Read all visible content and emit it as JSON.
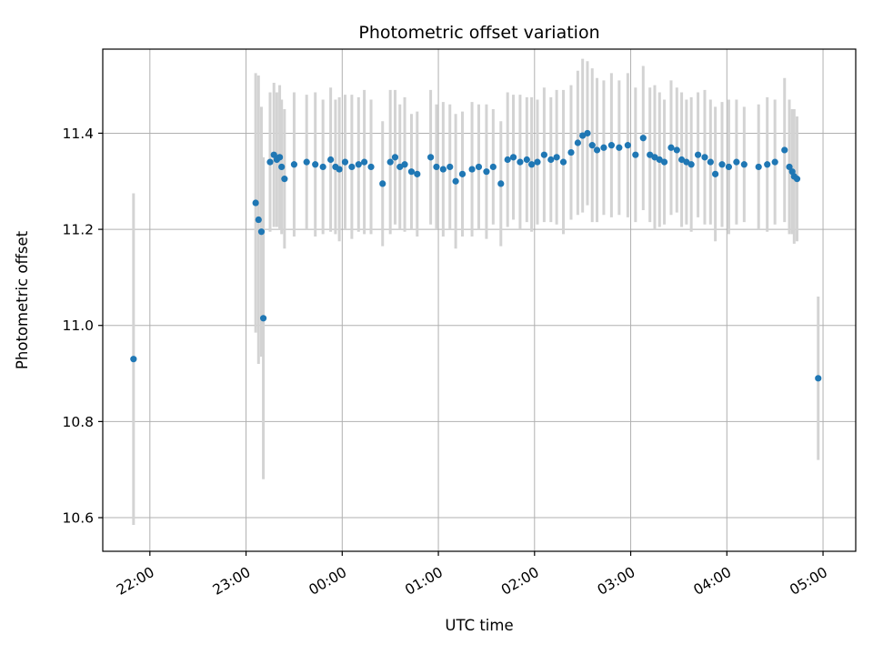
{
  "chart_data": {
    "type": "scatter",
    "title": "Photometric offset variation",
    "xlabel": "UTC time",
    "ylabel": "Photometric offset",
    "grid": true,
    "error_bars": true,
    "xlim": [
      21.51,
      29.34
    ],
    "ylim": [
      10.53,
      11.575
    ],
    "x_ticks": [
      {
        "hour": 22,
        "label": "22:00"
      },
      {
        "hour": 23,
        "label": "23:00"
      },
      {
        "hour": 24,
        "label": "00:00"
      },
      {
        "hour": 25,
        "label": "01:00"
      },
      {
        "hour": 26,
        "label": "02:00"
      },
      {
        "hour": 27,
        "label": "03:00"
      },
      {
        "hour": 28,
        "label": "04:00"
      },
      {
        "hour": 29,
        "label": "05:00"
      }
    ],
    "y_ticks": [
      {
        "value": 10.6,
        "label": "10.6"
      },
      {
        "value": 10.8,
        "label": "10.8"
      },
      {
        "value": 11.0,
        "label": "11.0"
      },
      {
        "value": 11.2,
        "label": "11.2"
      },
      {
        "value": 11.4,
        "label": "11.4"
      }
    ],
    "colors": {
      "marker": "#1f77b4",
      "error_bar": "#d3d3d3",
      "grid": "#b0b0b0",
      "axis": "#000000"
    },
    "series": [
      {
        "name": "photometric offset",
        "x_hours": [
          21.83,
          23.1,
          23.13,
          23.16,
          23.18,
          23.25,
          23.29,
          23.32,
          23.35,
          23.37,
          23.4,
          23.5,
          23.63,
          23.72,
          23.8,
          23.88,
          23.93,
          23.97,
          24.03,
          24.1,
          24.17,
          24.23,
          24.3,
          24.42,
          24.5,
          24.55,
          24.6,
          24.65,
          24.72,
          24.78,
          24.92,
          24.98,
          25.05,
          25.12,
          25.18,
          25.25,
          25.35,
          25.42,
          25.5,
          25.57,
          25.65,
          25.72,
          25.78,
          25.85,
          25.92,
          25.97,
          26.03,
          26.1,
          26.17,
          26.23,
          26.3,
          26.38,
          26.45,
          26.5,
          26.55,
          26.6,
          26.65,
          26.72,
          26.8,
          26.88,
          26.97,
          27.05,
          27.13,
          27.2,
          27.25,
          27.3,
          27.35,
          27.42,
          27.48,
          27.53,
          27.58,
          27.63,
          27.7,
          27.77,
          27.83,
          27.88,
          27.95,
          28.02,
          28.1,
          28.18,
          28.33,
          28.42,
          28.5,
          28.6,
          28.65,
          28.68,
          28.7,
          28.73,
          28.95
        ],
        "y": [
          10.93,
          11.255,
          11.22,
          11.195,
          11.015,
          11.34,
          11.355,
          11.345,
          11.35,
          11.33,
          11.305,
          11.335,
          11.34,
          11.335,
          11.33,
          11.345,
          11.33,
          11.325,
          11.34,
          11.33,
          11.335,
          11.34,
          11.33,
          11.295,
          11.34,
          11.35,
          11.33,
          11.335,
          11.32,
          11.315,
          11.35,
          11.33,
          11.325,
          11.33,
          11.3,
          11.315,
          11.325,
          11.33,
          11.32,
          11.33,
          11.295,
          11.345,
          11.35,
          11.34,
          11.345,
          11.335,
          11.34,
          11.355,
          11.345,
          11.35,
          11.34,
          11.36,
          11.38,
          11.395,
          11.4,
          11.375,
          11.365,
          11.37,
          11.375,
          11.37,
          11.375,
          11.355,
          11.39,
          11.355,
          11.35,
          11.345,
          11.34,
          11.37,
          11.365,
          11.345,
          11.34,
          11.335,
          11.355,
          11.35,
          11.34,
          11.315,
          11.335,
          11.33,
          11.34,
          11.335,
          11.33,
          11.335,
          11.34,
          11.365,
          11.33,
          11.32,
          11.31,
          11.305,
          10.89
        ],
        "yerr": [
          0.345,
          0.27,
          0.3,
          0.26,
          0.335,
          0.145,
          0.15,
          0.14,
          0.15,
          0.14,
          0.145,
          0.15,
          0.14,
          0.15,
          0.14,
          0.15,
          0.14,
          0.15,
          0.14,
          0.15,
          0.14,
          0.15,
          0.14,
          0.13,
          0.15,
          0.14,
          0.13,
          0.14,
          0.12,
          0.13,
          0.14,
          0.13,
          0.14,
          0.13,
          0.14,
          0.13,
          0.14,
          0.13,
          0.14,
          0.12,
          0.13,
          0.14,
          0.13,
          0.14,
          0.13,
          0.14,
          0.13,
          0.14,
          0.13,
          0.14,
          0.15,
          0.14,
          0.15,
          0.16,
          0.15,
          0.16,
          0.15,
          0.14,
          0.15,
          0.14,
          0.15,
          0.14,
          0.15,
          0.14,
          0.15,
          0.14,
          0.13,
          0.14,
          0.13,
          0.14,
          0.13,
          0.14,
          0.13,
          0.14,
          0.13,
          0.14,
          0.13,
          0.14,
          0.13,
          0.12,
          0.13,
          0.14,
          0.13,
          0.15,
          0.14,
          0.13,
          0.14,
          0.13,
          0.17
        ]
      }
    ]
  }
}
